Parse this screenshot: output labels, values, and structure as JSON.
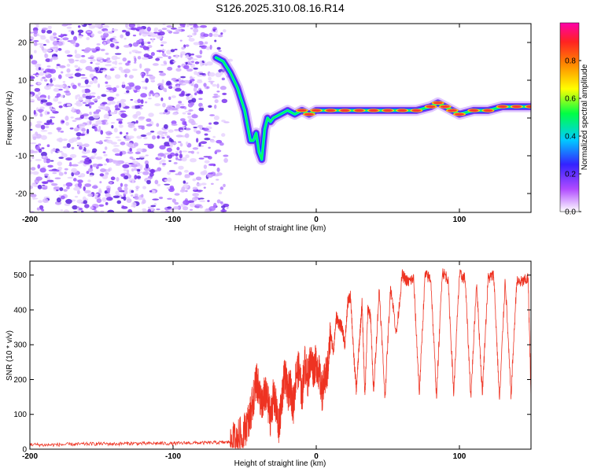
{
  "title": "S126.2025.310.08.16.R14",
  "colors": {
    "snr_line": "#ee3322",
    "background": "#ffffff",
    "axis": "#000000"
  },
  "chart_data": [
    {
      "type": "heatmap",
      "name": "spectrogram",
      "xlabel": "Height of straight line (km)",
      "ylabel": "Frequency (Hz)",
      "xlim": [
        -200,
        150
      ],
      "ylim": [
        -25,
        25
      ],
      "x_ticks": [
        -200,
        -100,
        0,
        100
      ],
      "y_ticks": [
        -20,
        -10,
        0,
        10,
        20
      ],
      "colorbar": {
        "label": "Normalized spectral amplitude",
        "range": [
          0,
          1
        ],
        "ticks": [
          "0.0",
          "0.2",
          "0.4",
          "0.6",
          "0.8"
        ],
        "colormap": [
          "#ffffff",
          "#b04bff",
          "#3322ff",
          "#00ccff",
          "#00ff44",
          "#ffff00",
          "#ff8800",
          "#ff2222",
          "#ff00aa"
        ]
      },
      "carrier_track": {
        "description": "Carrier frequency trace vs height",
        "x": [
          -70,
          -65,
          -60,
          -55,
          -50,
          -46,
          -44,
          -42,
          -40,
          -38,
          -36,
          -34,
          -32,
          -30,
          -25,
          -20,
          -15,
          -10,
          -5,
          0,
          10,
          20,
          30,
          40,
          50,
          60,
          70,
          80,
          85,
          90,
          95,
          100,
          110,
          120,
          130,
          140,
          150
        ],
        "y": [
          16,
          15,
          12,
          8,
          2,
          -6,
          -6,
          -4,
          -9,
          -11,
          -3,
          0,
          -1,
          0,
          1,
          2,
          1,
          2,
          1,
          2,
          2,
          2,
          2,
          2,
          2,
          2,
          2,
          3,
          4,
          3,
          2,
          1,
          2,
          2,
          3,
          3,
          3
        ]
      },
      "noise_region_x": [
        -200,
        -60
      ]
    },
    {
      "type": "line",
      "name": "snr",
      "xlabel": "Height of straight line (km)",
      "ylabel": "SNR (10 * v/v)",
      "xlim": [
        -200,
        150
      ],
      "ylim": [
        0,
        540
      ],
      "x_ticks": [
        -200,
        -100,
        0,
        100
      ],
      "y_ticks": [
        0,
        100,
        200,
        300,
        400,
        500
      ],
      "series": [
        {
          "name": "SNR",
          "x": [
            -200,
            -190,
            -180,
            -170,
            -160,
            -150,
            -140,
            -130,
            -120,
            -110,
            -100,
            -90,
            -80,
            -70,
            -62,
            -58,
            -54,
            -50,
            -46,
            -44,
            -42,
            -40,
            -38,
            -36,
            -34,
            -32,
            -30,
            -28,
            -26,
            -24,
            -22,
            -20,
            -18,
            -16,
            -14,
            -12,
            -10,
            -8,
            -6,
            -4,
            -2,
            0,
            2,
            4,
            6,
            8,
            10,
            12,
            14,
            16,
            18,
            20,
            22,
            24,
            26,
            28,
            30,
            32,
            34,
            36,
            38,
            40,
            44,
            48,
            52,
            56,
            60,
            64,
            68,
            72,
            76,
            80,
            84,
            88,
            92,
            96,
            100,
            104,
            108,
            112,
            116,
            120,
            124,
            128,
            132,
            136,
            140,
            144,
            148,
            150
          ],
          "y": [
            14,
            12,
            13,
            14,
            15,
            16,
            15,
            17,
            16,
            17,
            16,
            18,
            18,
            19,
            20,
            25,
            35,
            55,
            100,
            140,
            200,
            170,
            120,
            160,
            140,
            90,
            150,
            120,
            60,
            150,
            220,
            160,
            180,
            120,
            220,
            230,
            150,
            250,
            200,
            260,
            230,
            250,
            220,
            160,
            200,
            230,
            330,
            280,
            380,
            360,
            350,
            300,
            420,
            440,
            280,
            170,
            300,
            420,
            150,
            400,
            380,
            160,
            460,
            150,
            470,
            330,
            500,
            480,
            490,
            160,
            500,
            490,
            150,
            510,
            490,
            160,
            500,
            490,
            150,
            480,
            160,
            490,
            500,
            140,
            490,
            150,
            480,
            480,
            490,
            150
          ]
        }
      ]
    }
  ]
}
